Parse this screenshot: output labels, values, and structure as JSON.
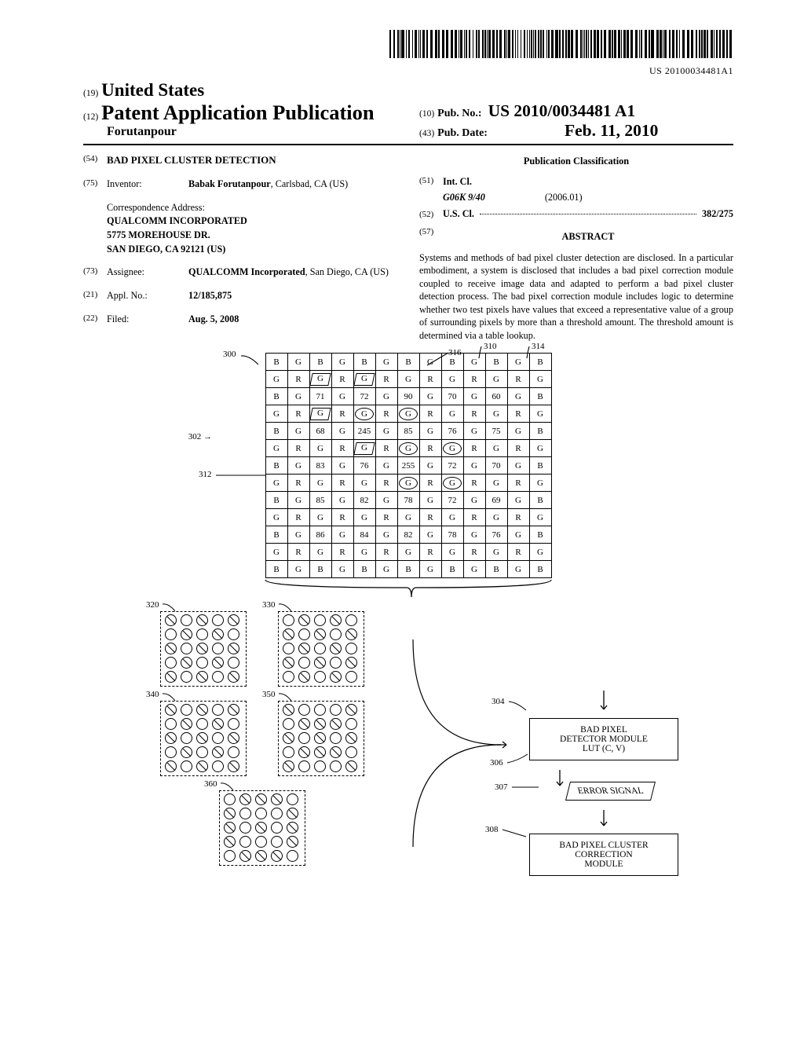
{
  "barcode_number": "US 20100034481A1",
  "header": {
    "code19": "(19)",
    "country": "United States",
    "code12": "(12)",
    "pub_title": "Patent Application Publication",
    "author": "Forutanpour",
    "code10": "(10)",
    "pubno_lbl": "Pub. No.:",
    "pubno": "US 2010/0034481 A1",
    "code43": "(43)",
    "pubdate_lbl": "Pub. Date:",
    "pubdate": "Feb. 11, 2010"
  },
  "f54": {
    "n": "(54)",
    "title": "BAD PIXEL CLUSTER DETECTION"
  },
  "f75": {
    "n": "(75)",
    "lbl": "Inventor:",
    "name": "Babak Forutanpour",
    "loc": ", Carlsbad, CA (US)"
  },
  "corr": {
    "lbl": "Correspondence Address:",
    "l1": "QUALCOMM INCORPORATED",
    "l2": "5775 MOREHOUSE DR.",
    "l3": "SAN DIEGO, CA 92121 (US)"
  },
  "f73": {
    "n": "(73)",
    "lbl": "Assignee:",
    "name": "QUALCOMM Incorporated",
    "loc": ", San Diego, CA (US)"
  },
  "f21": {
    "n": "(21)",
    "lbl": "Appl. No.:",
    "val": "12/185,875"
  },
  "f22": {
    "n": "(22)",
    "lbl": "Filed:",
    "val": "Aug. 5, 2008"
  },
  "pubclass": "Publication Classification",
  "f51": {
    "n": "(51)",
    "lbl": "Int. Cl.",
    "cl": "G06K 9/40",
    "yr": "(2006.01)"
  },
  "f52": {
    "n": "(52)",
    "lbl": "U.S. Cl.",
    "val": "382/275"
  },
  "f57": {
    "n": "(57)",
    "lbl": "ABSTRACT"
  },
  "abstract": "Systems and methods of bad pixel cluster detection are disclosed. In a particular embodiment, a system is disclosed that includes a bad pixel correction module coupled to receive image data and adapted to perform a bad pixel cluster detection process. The bad pixel correction module includes logic to determine whether two test pixels have values that exceed a representative value of a group of surrounding pixels by more than a threshold amount. The threshold amount is determined via a table lookup.",
  "fig": {
    "ref300": "300",
    "ref302": "302",
    "ref312": "312",
    "ref316": "316",
    "ref310": "310",
    "ref314": "314",
    "ref320": "320",
    "ref330": "330",
    "ref340": "340",
    "ref350": "350",
    "ref360": "360",
    "ref304": "304",
    "ref306": "306",
    "ref307": "307",
    "ref308": "308",
    "mod1a": "BAD PIXEL",
    "mod1b": "DETECTOR MODULE",
    "mod1c": "LUT (C, V)",
    "sig": "ERROR SIGNAL",
    "mod2a": "BAD PIXEL CLUSTER",
    "mod2b": "CORRECTION",
    "mod2c": "MODULE",
    "row1": [
      "B",
      "G",
      "B",
      "G",
      "B",
      "G",
      "B",
      "G",
      "B",
      "G",
      "B",
      "G",
      "B"
    ],
    "row2": [
      "G",
      "R",
      "G",
      "R",
      "G",
      "R",
      "G",
      "R",
      "G",
      "R",
      "G",
      "R",
      "G"
    ],
    "row3": [
      "B",
      "G",
      "71",
      "G",
      "72",
      "G",
      "90",
      "G",
      "70",
      "G",
      "60",
      "G",
      "B"
    ],
    "row4": [
      "G",
      "R",
      "G",
      "R",
      "G",
      "R",
      "G",
      "R",
      "G",
      "R",
      "G",
      "R",
      "G"
    ],
    "row5": [
      "B",
      "G",
      "68",
      "G",
      "245",
      "G",
      "85",
      "G",
      "76",
      "G",
      "75",
      "G",
      "B"
    ],
    "row6": [
      "G",
      "R",
      "G",
      "R",
      "G",
      "R",
      "G",
      "R",
      "G",
      "R",
      "G",
      "R",
      "G"
    ],
    "row7": [
      "B",
      "G",
      "83",
      "G",
      "76",
      "G",
      "255",
      "G",
      "72",
      "G",
      "70",
      "G",
      "B"
    ],
    "row8": [
      "G",
      "R",
      "G",
      "R",
      "G",
      "R",
      "G",
      "R",
      "G",
      "R",
      "G",
      "R",
      "G"
    ],
    "row9": [
      "B",
      "G",
      "85",
      "G",
      "82",
      "G",
      "78",
      "G",
      "72",
      "G",
      "69",
      "G",
      "B"
    ],
    "row10": [
      "G",
      "R",
      "G",
      "R",
      "G",
      "R",
      "G",
      "R",
      "G",
      "R",
      "G",
      "R",
      "G"
    ],
    "row11": [
      "B",
      "G",
      "86",
      "G",
      "84",
      "G",
      "82",
      "G",
      "78",
      "G",
      "76",
      "G",
      "B"
    ],
    "row12": [
      "G",
      "R",
      "G",
      "R",
      "G",
      "R",
      "G",
      "R",
      "G",
      "R",
      "G",
      "R",
      "G"
    ],
    "row13": [
      "B",
      "G",
      "B",
      "G",
      "B",
      "G",
      "B",
      "G",
      "B",
      "G",
      "B",
      "G",
      "B"
    ],
    "hatch": [
      [
        2,
        2
      ],
      [
        2,
        4
      ],
      [
        4,
        2
      ],
      [
        6,
        4
      ]
    ],
    "circle": [
      [
        4,
        4
      ],
      [
        4,
        6
      ],
      [
        6,
        6
      ],
      [
        8,
        6
      ]
    ],
    "circle2": [
      [
        6,
        8
      ],
      [
        8,
        8
      ]
    ],
    "p320": [
      [
        0,
        0
      ],
      [
        0,
        2
      ],
      [
        0,
        4
      ],
      [
        1,
        1
      ],
      [
        1,
        3
      ],
      [
        2,
        0
      ],
      [
        2,
        2
      ],
      [
        2,
        4
      ],
      [
        3,
        1
      ],
      [
        3,
        3
      ],
      [
        4,
        0
      ],
      [
        4,
        2
      ],
      [
        4,
        4
      ]
    ],
    "p330": [
      [
        0,
        1
      ],
      [
        0,
        3
      ],
      [
        1,
        0
      ],
      [
        1,
        2
      ],
      [
        1,
        4
      ],
      [
        2,
        1
      ],
      [
        2,
        3
      ],
      [
        3,
        0
      ],
      [
        3,
        2
      ],
      [
        3,
        4
      ],
      [
        4,
        1
      ],
      [
        4,
        3
      ]
    ],
    "p340": [
      [
        0,
        0
      ],
      [
        0,
        2
      ],
      [
        0,
        4
      ],
      [
        1,
        1
      ],
      [
        1,
        3
      ],
      [
        2,
        0
      ],
      [
        2,
        2
      ],
      [
        2,
        4
      ],
      [
        3,
        1
      ],
      [
        3,
        3
      ],
      [
        4,
        0
      ],
      [
        4,
        2
      ],
      [
        4,
        4
      ]
    ],
    "p350": [
      [
        0,
        0
      ],
      [
        0,
        4
      ],
      [
        1,
        1
      ],
      [
        1,
        2
      ],
      [
        1,
        3
      ],
      [
        2,
        0
      ],
      [
        2,
        2
      ],
      [
        2,
        4
      ],
      [
        3,
        1
      ],
      [
        3,
        2
      ],
      [
        3,
        3
      ],
      [
        4,
        0
      ],
      [
        4,
        4
      ]
    ],
    "p360": [
      [
        0,
        1
      ],
      [
        0,
        2
      ],
      [
        0,
        3
      ],
      [
        1,
        0
      ],
      [
        1,
        4
      ],
      [
        2,
        0
      ],
      [
        2,
        2
      ],
      [
        2,
        4
      ],
      [
        3,
        0
      ],
      [
        3,
        4
      ],
      [
        4,
        1
      ],
      [
        4,
        2
      ],
      [
        4,
        3
      ]
    ]
  }
}
